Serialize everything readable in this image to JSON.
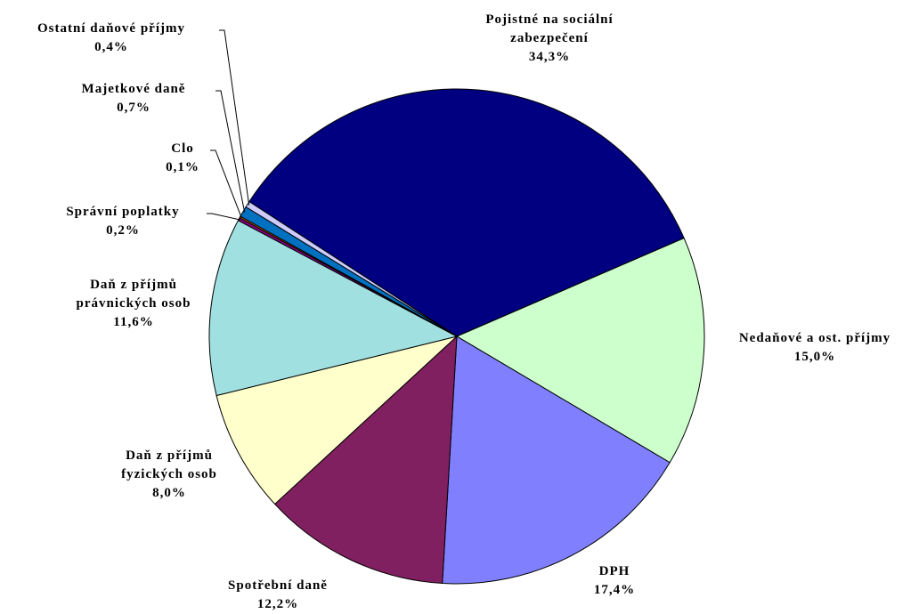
{
  "chart_data": {
    "type": "pie",
    "categories": [
      "Pojistné na sociální zabezpečení",
      "Nedaňové a ost. příjmy",
      "DPH",
      "Spotřební daně",
      "Daň z příjmů fyzických osob",
      "Daň z příjmů právnických osob",
      "Správní poplatky",
      "Clo",
      "Majetkové daně",
      "Ostatní daňové příjmy"
    ],
    "values": [
      34.3,
      15.0,
      17.4,
      12.2,
      8.0,
      11.6,
      0.2,
      0.1,
      0.7,
      0.4
    ],
    "value_labels": [
      "34,3%",
      "15,0%",
      "17,4%",
      "12,2%",
      "8,0%",
      "11,6%",
      "0,2%",
      "0,1%",
      "0,7%",
      "0,4%"
    ],
    "colors": [
      "#000080",
      "#ccffcc",
      "#8080ff",
      "#802060",
      "#ffffcc",
      "#a0e0e0",
      "#800080",
      "#ff8000",
      "#0070c0",
      "#ccccff"
    ]
  }
}
